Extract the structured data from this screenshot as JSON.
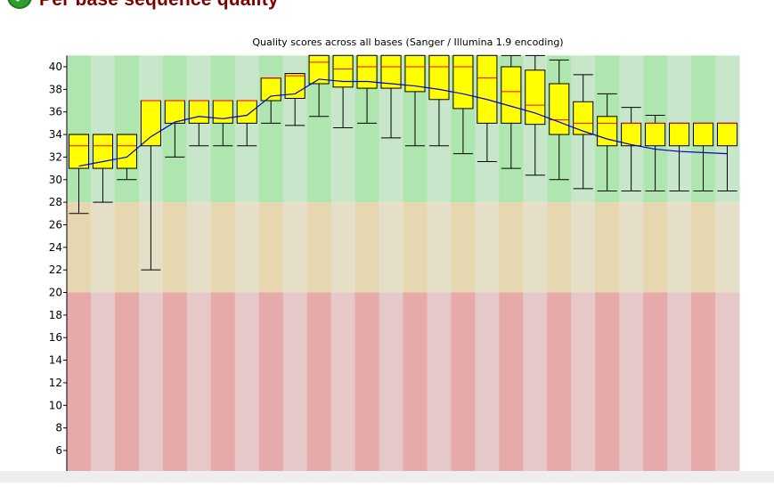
{
  "section": {
    "title": "Per base sequence quality",
    "status": "pass",
    "status_icon": "check-circle-icon"
  },
  "chart_data": {
    "type": "boxplot",
    "title": "Quality scores across all bases (Sanger / Illumina 1.9 encoding)",
    "xlabel": "",
    "ylabel": "",
    "ylim": [
      4,
      41
    ],
    "yticks": [
      6,
      8,
      10,
      12,
      14,
      16,
      18,
      20,
      22,
      24,
      26,
      28,
      30,
      32,
      34,
      36,
      38,
      40
    ],
    "grid": false,
    "bands": [
      {
        "name": "good",
        "from": 28,
        "to": 41,
        "colors": [
          "#afe6b0",
          "#c8e6c9"
        ]
      },
      {
        "name": "reasonable",
        "from": 20,
        "to": 28,
        "colors": [
          "#e6d7b0",
          "#e6dfc8"
        ]
      },
      {
        "name": "poor",
        "from": 4,
        "to": 20,
        "colors": [
          "#e6aaaa",
          "#e6c8c8"
        ]
      }
    ],
    "colors": {
      "box": "#ffff00",
      "median": "#ff0000",
      "mean": "#0000cc",
      "whisker": "#000000"
    },
    "series": [
      {
        "name": "boxes",
        "q1": [
          31,
          31,
          31,
          33,
          35,
          35,
          35,
          35,
          37,
          37.2,
          38.5,
          38.2,
          38.1,
          38.1,
          37.8,
          37.1,
          36.3,
          35,
          35,
          34.9,
          34,
          34,
          33,
          33,
          33,
          33,
          33,
          33
        ],
        "median": [
          33,
          33,
          33,
          37,
          37,
          37,
          37,
          37,
          39,
          39.2,
          40.4,
          39.8,
          40,
          40,
          40,
          40,
          40,
          39,
          37.8,
          36.6,
          35.3,
          35,
          35,
          35,
          35,
          35,
          35,
          35
        ],
        "q3": [
          34,
          34,
          34,
          37,
          37,
          37,
          37,
          37,
          39,
          39.4,
          41,
          41,
          41,
          41,
          41,
          41,
          41,
          41,
          40,
          39.7,
          38.5,
          36.9,
          35.6,
          35,
          35,
          35,
          35,
          35
        ],
        "low": [
          27,
          28,
          30,
          22,
          32,
          33,
          33,
          33,
          35,
          34.8,
          35.6,
          34.6,
          35,
          33.7,
          33,
          33,
          32.3,
          31.6,
          31,
          30.4,
          30,
          29.2,
          29,
          29,
          29,
          29,
          29,
          29
        ],
        "high": [
          34,
          34,
          34,
          37,
          37,
          37,
          37,
          37,
          39,
          39.4,
          41,
          41,
          41,
          41,
          41,
          41,
          41,
          41,
          41,
          41,
          40.6,
          39.3,
          37.6,
          36.4,
          35.7,
          35,
          35,
          35
        ]
      },
      {
        "name": "mean",
        "values": [
          31.2,
          31.6,
          32.0,
          33.8,
          35.1,
          35.6,
          35.4,
          35.7,
          37.4,
          37.6,
          38.9,
          38.7,
          38.7,
          38.5,
          38.3,
          38.0,
          37.6,
          37.1,
          36.5,
          35.9,
          35.1,
          34.3,
          33.6,
          33.1,
          32.7,
          32.5,
          32.4,
          32.3
        ]
      }
    ]
  }
}
